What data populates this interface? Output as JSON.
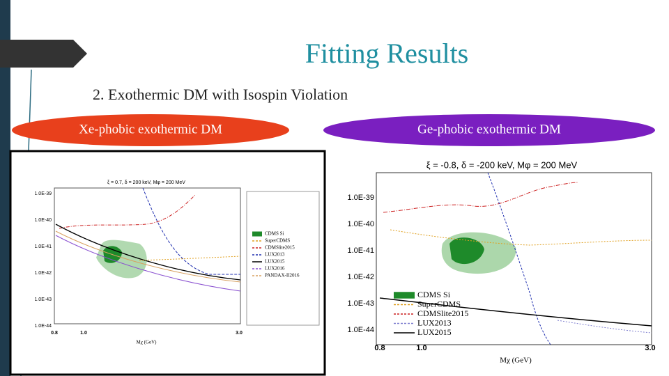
{
  "slide": {
    "title": "Fitting Results",
    "subtitle": "2.   Exothermic DM with Isospin Violation"
  },
  "labels": [
    "Xe-phobic exothermic DM",
    "Ge-phobic exothermic DM"
  ],
  "plots": [
    {
      "caption": "ξ = 0.7, δ = 200 keV, Mφ = 200 MeV",
      "yticks": [
        "1.0E-39",
        "1.0E-40",
        "1.0E-41",
        "1.0E-42",
        "1.0E-43",
        "1.0E-44"
      ],
      "xticks": [
        "0.8",
        "1.0",
        "3.0"
      ],
      "xlabel": "Mχ (GeV)",
      "legend": [
        {
          "name": "CDMS Si",
          "color": "#1e8a2a"
        },
        {
          "name": "SuperCDMS",
          "color": "#e0a020"
        },
        {
          "name": "CDMSlite2015",
          "color": "#cc2020"
        },
        {
          "name": "LUX2013",
          "color": "#2030b0"
        },
        {
          "name": "LUX2015",
          "color": "#000000"
        },
        {
          "name": "LUX2016",
          "color": "#8a50d0"
        },
        {
          "name": "PANDAX-II2016",
          "color": "#d8a060"
        }
      ]
    },
    {
      "caption": "ξ = -0.8, δ = -200 keV, Mφ = 200 MeV",
      "yticks": [
        "1.0E-39",
        "1.0E-40",
        "1.0E-41",
        "1.0E-42",
        "1.0E-43",
        "1.0E-44"
      ],
      "xticks": [
        "0.8",
        "1.0",
        "3.0"
      ],
      "xlabel": "Mχ (GeV)",
      "legend": [
        {
          "name": "CDMS Si",
          "color": "#1e8a2a"
        },
        {
          "name": "SuperCDMS",
          "color": "#e0a020"
        },
        {
          "name": "CDMSlite2015",
          "color": "#cc2020"
        },
        {
          "name": "LUX2013",
          "color": "#8080d0"
        },
        {
          "name": "LUX2015",
          "color": "#000000"
        }
      ]
    }
  ]
}
